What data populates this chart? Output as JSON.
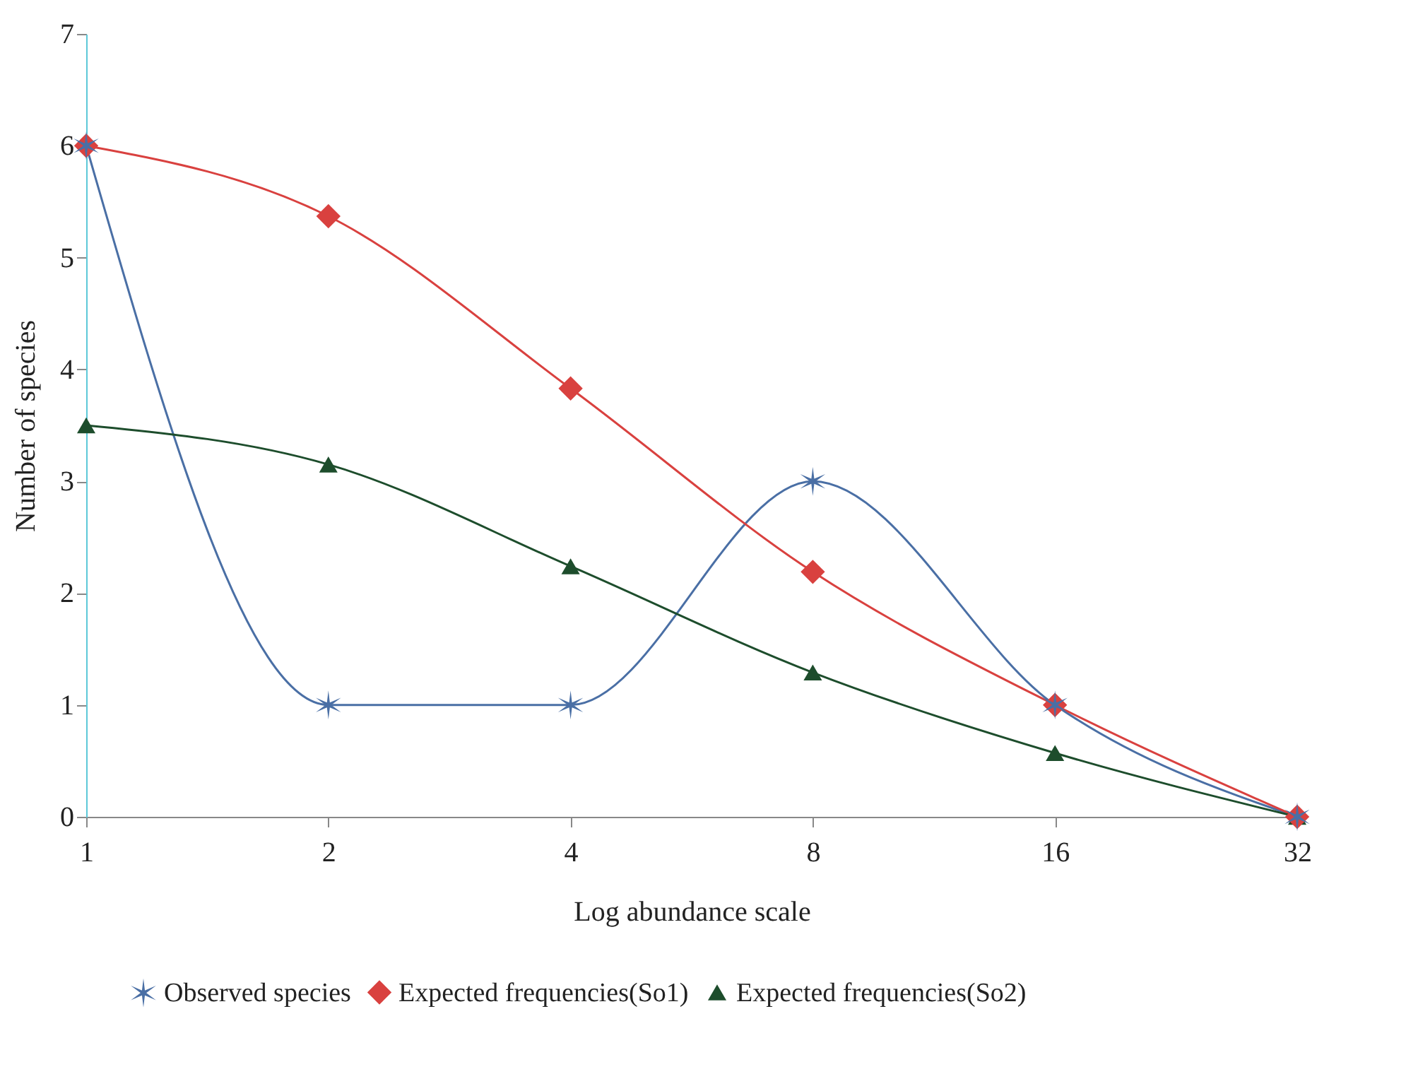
{
  "chart_data": {
    "type": "line",
    "xlabel": "Log abundance scale",
    "ylabel": "Number of species",
    "categories": [
      "1",
      "2",
      "4",
      "8",
      "16",
      "32"
    ],
    "ylim": [
      0,
      7
    ],
    "yticks": [
      0,
      1,
      2,
      3,
      4,
      5,
      6,
      7
    ],
    "legend": "bottom",
    "series": [
      {
        "name": "Observed species",
        "color": "#4a6fa5",
        "marker": "cross",
        "values": [
          6,
          1,
          1,
          3,
          1,
          0
        ]
      },
      {
        "name": "Expected frequencies(So1)",
        "color": "#d9413f",
        "marker": "diamond",
        "values": [
          6,
          5.37,
          3.83,
          2.19,
          1,
          0
        ]
      },
      {
        "name": "Expected frequencies(So2)",
        "color": "#1d4d2c",
        "marker": "triangle",
        "values": [
          3.5,
          3.15,
          2.24,
          1.29,
          0.57,
          0
        ]
      }
    ]
  }
}
